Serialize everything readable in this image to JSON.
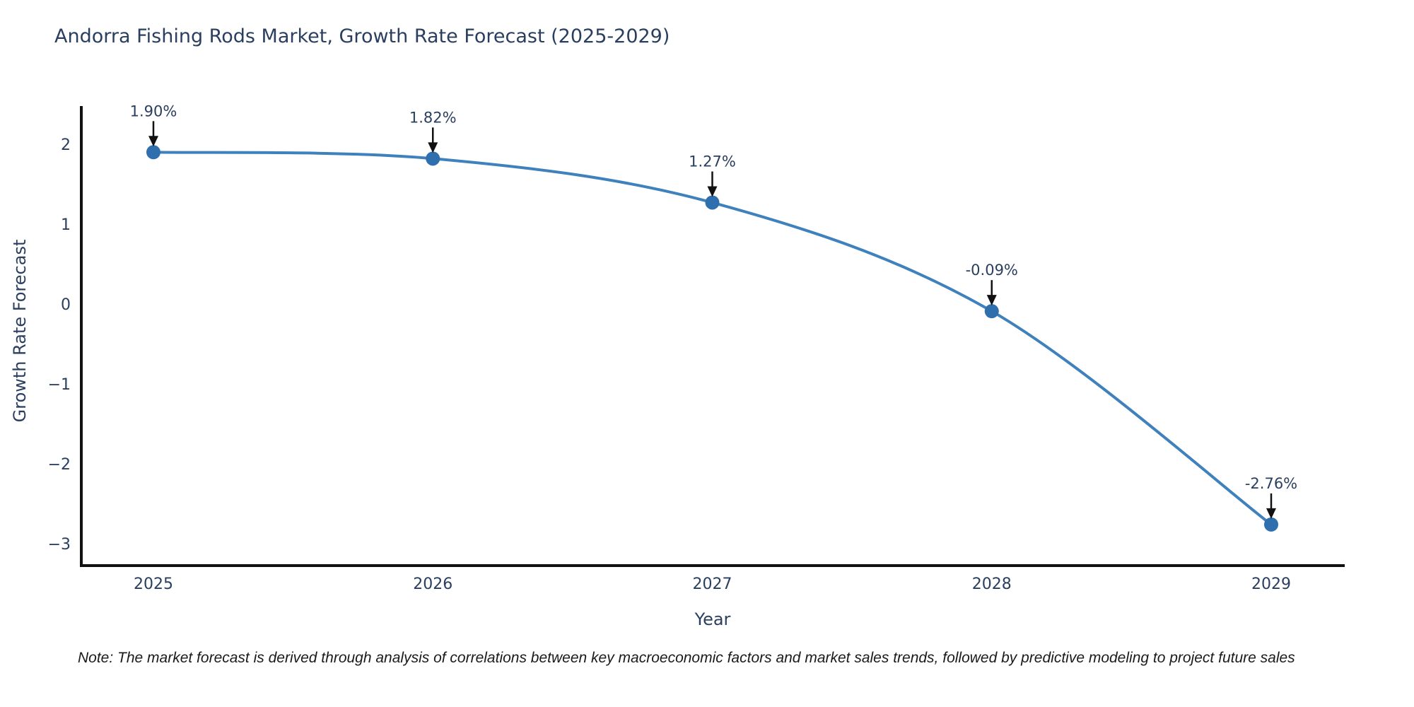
{
  "title": "Andorra Fishing Rods Market, Growth Rate Forecast (2025-2029)",
  "note": "Note: The market forecast is derived through analysis of correlations between key macroeconomic factors and market sales trends, followed by predictive modeling to project future sales",
  "colors": {
    "text": "#2a3f5f",
    "axis": "#111111",
    "annotation_arrow": "#111111",
    "note_text": "#1a1a1a",
    "background": "#ffffff"
  },
  "chart_data": {
    "type": "line",
    "title": "Andorra Fishing Rods Market, Growth Rate Forecast (2025-2029)",
    "xlabel": "Year",
    "ylabel": "Growth Rate Forecast",
    "x": [
      2025,
      2026,
      2027,
      2028,
      2029
    ],
    "y": [
      1.9,
      1.82,
      1.27,
      -0.09,
      -2.76
    ],
    "point_labels": [
      "1.90%",
      "1.82%",
      "1.27%",
      "-0.09%",
      "-2.76%"
    ],
    "yticks": [
      2,
      1,
      0,
      -1,
      -2,
      -3
    ],
    "ylim": [
      -3.3,
      2.45
    ],
    "grid": false,
    "legend": "none",
    "line_shape": "spline",
    "line_color": "#3f81bc",
    "marker_color": "#2f6fae"
  }
}
